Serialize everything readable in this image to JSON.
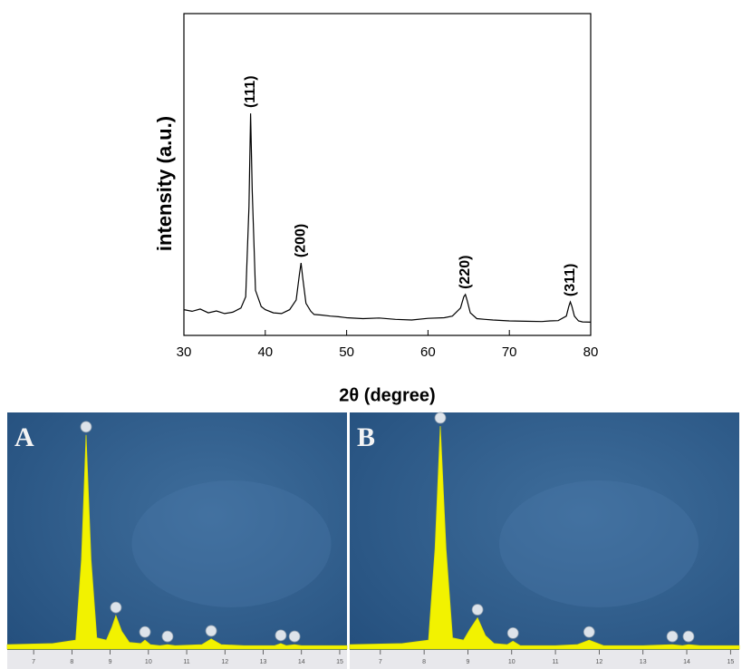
{
  "chart_data": [
    {
      "type": "line",
      "xlabel": "2θ (degree)",
      "ylabel": "intensity (a.u.)",
      "color": "#000000",
      "xlim": [
        30,
        80
      ],
      "xticks": [
        30,
        40,
        50,
        60,
        70,
        80
      ],
      "ylim": [
        0,
        100
      ],
      "x": [
        30,
        31,
        32,
        33,
        34,
        35,
        36,
        37,
        37.6,
        38,
        38.2,
        38.4,
        38.8,
        39.5,
        40,
        41,
        42,
        43,
        43.8,
        44.2,
        44.4,
        44.6,
        45,
        45.6,
        46,
        47,
        48,
        49,
        50,
        52,
        54,
        56,
        58,
        60,
        62,
        63,
        64,
        64.4,
        64.6,
        64.8,
        65.2,
        66,
        67,
        68,
        70,
        72,
        74,
        75,
        76,
        77,
        77.3,
        77.5,
        77.7,
        78,
        78.5,
        79,
        80
      ],
      "values": [
        8,
        7.5,
        8.2,
        7,
        7.6,
        6.8,
        7.2,
        8.5,
        12,
        40,
        69,
        45,
        14,
        9,
        8,
        7,
        6.8,
        8,
        11,
        19,
        22.5,
        18,
        10,
        7.5,
        6.5,
        6.3,
        6,
        5.8,
        5.5,
        5.2,
        5.4,
        5,
        4.8,
        5.3,
        5.5,
        6,
        8.5,
        12,
        12.7,
        11,
        7,
        5.2,
        5,
        4.8,
        4.5,
        4.4,
        4.3,
        4.5,
        4.6,
        6,
        9,
        10.4,
        9,
        6,
        4.5,
        4.2,
        4.1
      ],
      "annotations": [
        {
          "text": "(111)",
          "x": 38.2
        },
        {
          "text": "(200)",
          "x": 44.4
        },
        {
          "text": "(220)",
          "x": 64.6
        },
        {
          "text": "(311)",
          "x": 77.5
        }
      ]
    },
    {
      "type": "area",
      "title": "A",
      "color": "#f2f200",
      "xlim": [
        6.31,
        15.19
      ],
      "xticks": [
        7,
        8,
        9,
        10,
        11,
        12,
        13,
        14,
        15
      ],
      "ylim": [
        0,
        100
      ],
      "x": [
        6.31,
        7.5,
        8.1,
        8.25,
        8.37,
        8.5,
        8.65,
        8.9,
        9.05,
        9.15,
        9.3,
        9.5,
        9.8,
        9.91,
        10.05,
        10.3,
        10.5,
        10.7,
        11.4,
        11.64,
        11.9,
        12.5,
        13.3,
        13.46,
        13.6,
        13.82,
        14,
        15.19
      ],
      "values": [
        2,
        2.5,
        4,
        40,
        96,
        40,
        5,
        4,
        10,
        15,
        8,
        3,
        2.5,
        4,
        2,
        1.5,
        2,
        1.5,
        2,
        4.5,
        2,
        1.5,
        1.5,
        2.5,
        1.5,
        2,
        1.5,
        1.5
      ]
    },
    {
      "type": "area",
      "title": "B",
      "color": "#f2f200",
      "xlim": [
        6.3,
        15.2
      ],
      "xticks": [
        7,
        8,
        9,
        10,
        11,
        12,
        13,
        14,
        15
      ],
      "ylim": [
        0,
        100
      ],
      "x": [
        6.3,
        7.5,
        8.1,
        8.25,
        8.37,
        8.5,
        8.65,
        8.9,
        9.05,
        9.22,
        9.4,
        9.6,
        9.9,
        10.03,
        10.2,
        10.63,
        11.0,
        11.5,
        11.77,
        12.1,
        13.0,
        13.67,
        13.9,
        14.04,
        14.3,
        15.2
      ],
      "values": [
        2,
        2.5,
        4,
        45,
        100,
        45,
        5,
        4,
        9,
        14,
        6,
        2.5,
        2,
        3.5,
        1.5,
        1.5,
        1.5,
        2,
        4,
        1.5,
        1.5,
        2,
        1.5,
        2,
        1.5,
        1.5
      ]
    }
  ]
}
